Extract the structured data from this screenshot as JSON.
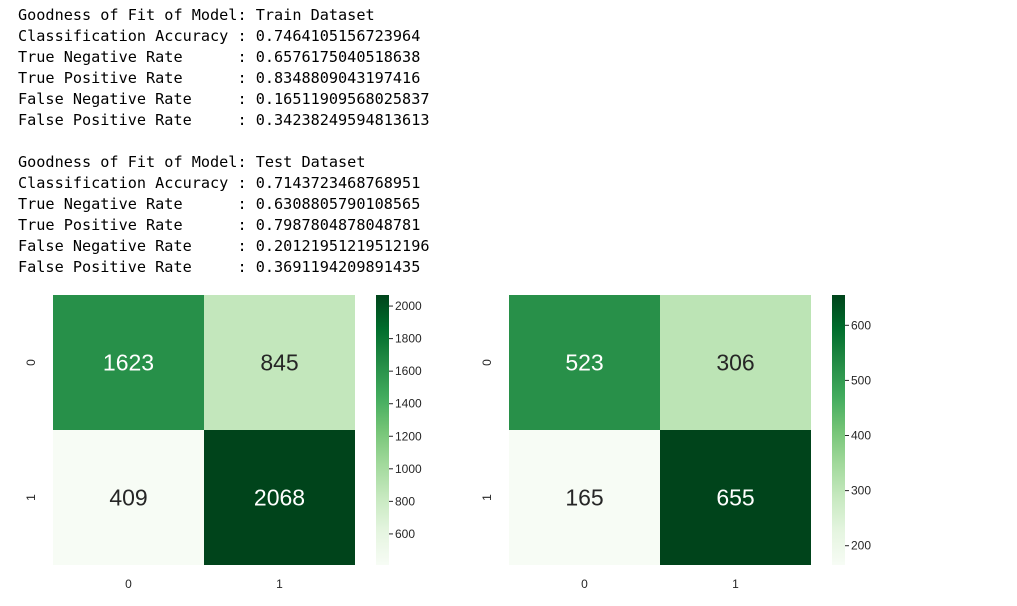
{
  "report": {
    "blocks": [
      {
        "heading_label": "Goodness of Fit of Model:",
        "dataset": "Train Dataset",
        "metrics": [
          {
            "label": "Classification Accuracy",
            "value": "0.7464105156723964"
          },
          {
            "label": "True Negative Rate",
            "value": "0.6576175040518638"
          },
          {
            "label": "True Positive Rate",
            "value": "0.8348809043197416"
          },
          {
            "label": "False Negative Rate",
            "value": "0.16511909568025837"
          },
          {
            "label": "False Positive Rate",
            "value": "0.34238249594813613"
          }
        ]
      },
      {
        "heading_label": "Goodness of Fit of Model:",
        "dataset": "Test Dataset",
        "metrics": [
          {
            "label": "Classification Accuracy",
            "value": "0.7143723468768951"
          },
          {
            "label": "True Negative Rate",
            "value": "0.6308805790108565"
          },
          {
            "label": "True Positive Rate",
            "value": "0.7987804878048781"
          },
          {
            "label": "False Negative Rate",
            "value": "0.20121951219512196"
          },
          {
            "label": "False Positive Rate",
            "value": "0.3691194209891435"
          }
        ]
      }
    ]
  },
  "chart_data": [
    {
      "type": "heatmap",
      "x_categories": [
        "0",
        "1"
      ],
      "y_categories": [
        "0",
        "1"
      ],
      "values": [
        [
          1623,
          845
        ],
        [
          409,
          2068
        ]
      ],
      "colormap": "Greens",
      "colorbar": {
        "min": 409,
        "max": 2068,
        "ticks": [
          600,
          800,
          1000,
          1200,
          1400,
          1600,
          1800,
          2000
        ]
      },
      "annotations": true
    },
    {
      "type": "heatmap",
      "x_categories": [
        "0",
        "1"
      ],
      "y_categories": [
        "0",
        "1"
      ],
      "values": [
        [
          523,
          306
        ],
        [
          165,
          655
        ]
      ],
      "colormap": "Greens",
      "colorbar": {
        "min": 165,
        "max": 655,
        "ticks": [
          200,
          300,
          400,
          500,
          600
        ]
      },
      "annotations": true
    }
  ],
  "colors": {
    "cmap_stops": [
      "#f7fcf5",
      "#e5f5e0",
      "#c7e9c0",
      "#a1d99b",
      "#74c476",
      "#41ab5d",
      "#238b45",
      "#006d2c",
      "#00441b"
    ],
    "text_dark": "#262626",
    "text_light": "#ffffff"
  }
}
